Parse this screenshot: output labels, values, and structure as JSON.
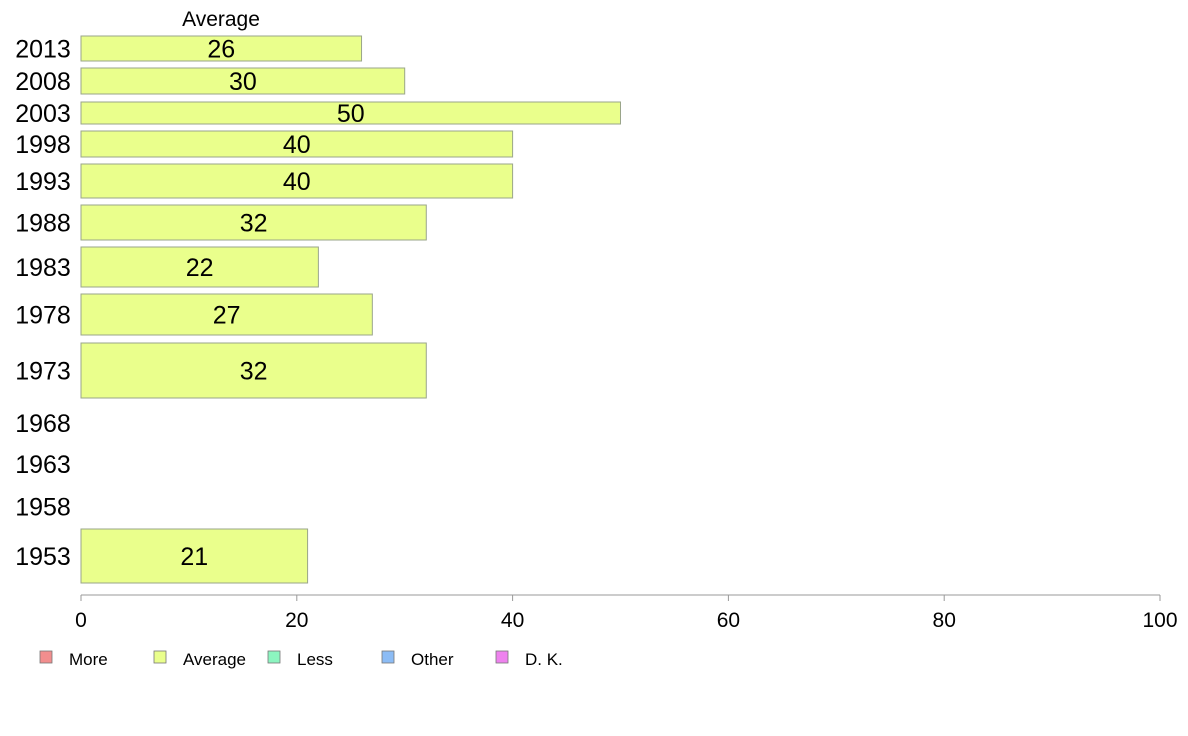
{
  "chart_data": {
    "type": "bar",
    "orientation": "horizontal",
    "series_title": "Average",
    "categories": [
      "2013",
      "2008",
      "2003",
      "1998",
      "1993",
      "1988",
      "1983",
      "1978",
      "1973",
      "1968",
      "1963",
      "1958",
      "1953"
    ],
    "series": [
      {
        "name": "Average",
        "values": [
          26,
          30,
          50,
          40,
          40,
          32,
          22,
          27,
          32,
          null,
          null,
          null,
          21
        ]
      }
    ],
    "bar_labels": [
      "26",
      "30",
      "50",
      "40",
      "40",
      "32",
      "22",
      "27",
      "32",
      "",
      "",
      "",
      "21"
    ],
    "xlim": [
      0,
      100
    ],
    "xticks": [
      "0",
      "20",
      "40",
      "60",
      "80",
      "100"
    ],
    "legend": [
      {
        "label": "More",
        "color": "#f28e8e"
      },
      {
        "label": "Average",
        "color": "#eaff8c"
      },
      {
        "label": "Less",
        "color": "#8cf5c0"
      },
      {
        "label": "Other",
        "color": "#8cbcf5"
      },
      {
        "label": "D. K.",
        "color": "#ee82ee"
      }
    ],
    "legend_position": "bottom-left",
    "grid": false,
    "colors": {
      "bar": "#eaff8c",
      "bar_stroke": "#9aa58a",
      "axis": "#999999"
    }
  }
}
